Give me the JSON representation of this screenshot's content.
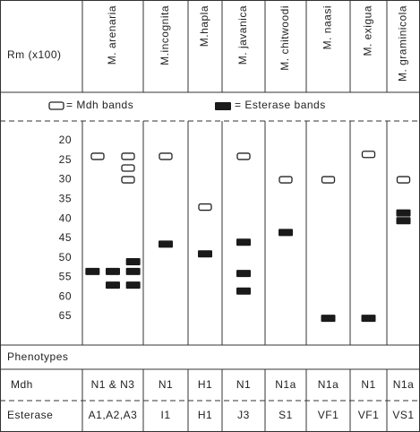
{
  "axis_label": "Rm (x100)",
  "legend": {
    "mdh": "= Mdh bands",
    "esterase": "= Esterase bands"
  },
  "rm_ticks": [
    20,
    25,
    30,
    35,
    40,
    45,
    50,
    55,
    60,
    65
  ],
  "rows": {
    "phenotypes": "Phenotypes",
    "mdh": "Mdh",
    "esterase": "Esterase"
  },
  "species": [
    {
      "name": "M. arenaria",
      "mdh": [
        [
          24
        ],
        [
          24,
          27,
          30
        ]
      ],
      "esterase": [
        [
          53.5
        ],
        [
          53.5,
          57
        ],
        [
          51,
          53.5,
          57
        ]
      ],
      "mdh_phenotype": "N1 & N3",
      "esterase_phenotype": "A1,A2,A3"
    },
    {
      "name": "M.incognita",
      "mdh": [
        [
          24
        ]
      ],
      "esterase": [
        [
          46.5
        ]
      ],
      "mdh_phenotype": "N1",
      "esterase_phenotype": "I1"
    },
    {
      "name": "M.hapla",
      "mdh": [
        [
          37
        ]
      ],
      "esterase": [
        [
          49
        ]
      ],
      "mdh_phenotype": "H1",
      "esterase_phenotype": "H1"
    },
    {
      "name": "M. javanica",
      "mdh": [
        [
          24
        ]
      ],
      "esterase": [
        [
          46,
          54,
          58.5
        ]
      ],
      "mdh_phenotype": "N1",
      "esterase_phenotype": "J3"
    },
    {
      "name": "M. chitwoodi",
      "mdh": [
        [
          30
        ]
      ],
      "esterase": [
        [
          43.5
        ]
      ],
      "mdh_phenotype": "N1a",
      "esterase_phenotype": "S1"
    },
    {
      "name": "M. naasi",
      "mdh": [
        [
          30
        ]
      ],
      "esterase": [
        [
          65.5
        ]
      ],
      "mdh_phenotype": "N1a",
      "esterase_phenotype": "VF1"
    },
    {
      "name": "M. exigua",
      "mdh": [
        [
          23.5
        ]
      ],
      "esterase": [
        [
          65.5
        ]
      ],
      "mdh_phenotype": "N1",
      "esterase_phenotype": "VF1"
    },
    {
      "name": "M. graminicola",
      "mdh": [
        [
          30
        ]
      ],
      "esterase": [
        [
          38.5,
          40.5
        ]
      ],
      "mdh_phenotype": "N1a",
      "esterase_phenotype": "VS1"
    }
  ]
}
